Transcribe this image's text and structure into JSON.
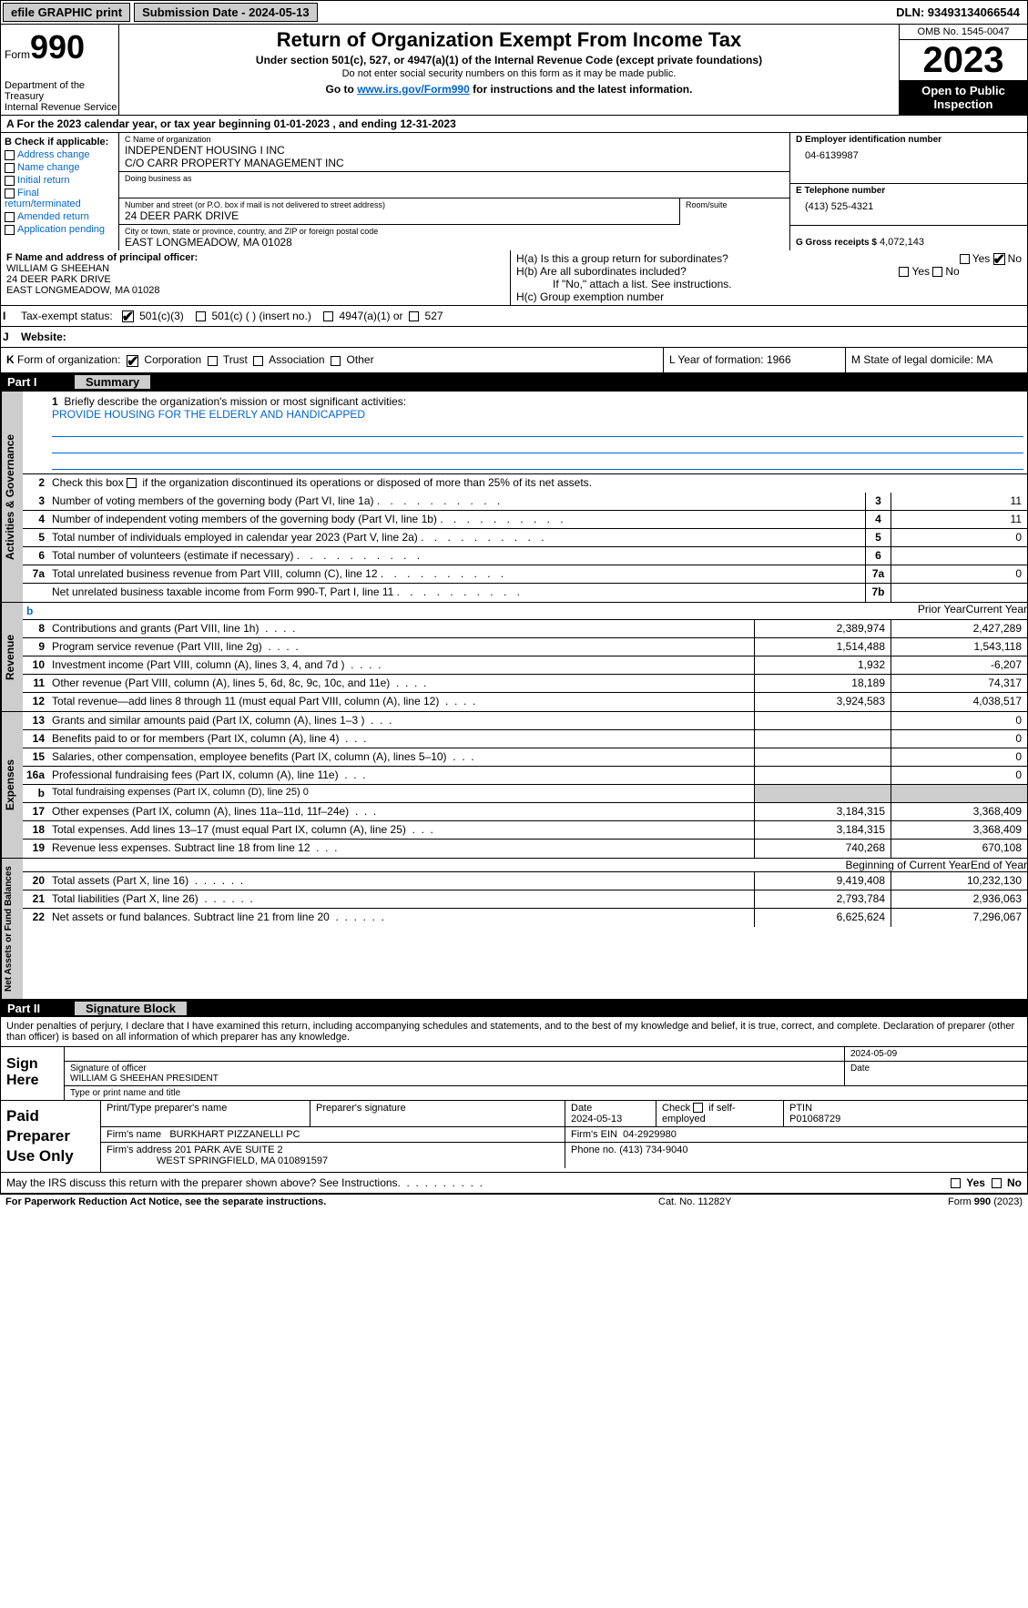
{
  "topbar": {
    "efile": "efile GRAPHIC print",
    "submission": "Submission Date - 2024-05-13",
    "dln": "DLN: 93493134066544"
  },
  "header": {
    "form_prefix": "Form",
    "form_num": "990",
    "title": "Return of Organization Exempt From Income Tax",
    "subtitle": "Under section 501(c), 527, or 4947(a)(1) of the Internal Revenue Code (except private foundations)",
    "ssn_note": "Do not enter social security numbers on this form as it may be made public.",
    "goto_prefix": "Go to ",
    "goto_link": "www.irs.gov/Form990",
    "goto_suffix": " for instructions and the latest information.",
    "dept": "Department of the Treasury\nInternal Revenue Service",
    "omb": "OMB No. 1545-0047",
    "year": "2023",
    "open": "Open to Public Inspection"
  },
  "line_a": "A For the 2023 calendar year, or tax year beginning 01-01-2023   , and ending 12-31-2023",
  "col_b": {
    "label": "B Check if applicable:",
    "opts": [
      "Address change",
      "Name change",
      "Initial return",
      "Final return/terminated",
      "Amended return",
      "Application pending"
    ]
  },
  "col_c": {
    "name_label": "C Name of organization",
    "name1": "INDEPENDENT HOUSING I INC",
    "name2": "C/O CARR PROPERTY MANAGEMENT INC",
    "dba_label": "Doing business as",
    "addr_label": "Number and street (or P.O. box if mail is not delivered to street address)",
    "addr": "24 DEER PARK DRIVE",
    "room_label": "Room/suite",
    "city_label": "City or town, state or province, country, and ZIP or foreign postal code",
    "city": "EAST LONGMEADOW, MA  01028"
  },
  "col_d": {
    "ein_label": "D Employer identification number",
    "ein": "04-6139987",
    "phone_label": "E Telephone number",
    "phone": "(413) 525-4321",
    "gross_label": "G Gross receipts $",
    "gross": "4,072,143"
  },
  "row_f": {
    "label": "F  Name and address of principal officer:",
    "name": "WILLIAM G SHEEHAN",
    "addr1": "24 DEER PARK DRIVE",
    "addr2": "EAST LONGMEADOW, MA  01028",
    "ha": "H(a)  Is this a group return for subordinates?",
    "hb": "H(b)  Are all subordinates included?",
    "hb_note": "If \"No,\" attach a list. See instructions.",
    "hc": "H(c)  Group exemption number"
  },
  "row_i": {
    "label": "I",
    "text": "Tax-exempt status:",
    "opt1": "501(c)(3)",
    "opt2": "501(c) (  ) (insert no.)",
    "opt3": "4947(a)(1) or",
    "opt4": "527"
  },
  "row_j": {
    "label": "J",
    "text": "Website:"
  },
  "row_k": {
    "label": "K",
    "text": "Form of organization:",
    "opts": [
      "Corporation",
      "Trust",
      "Association",
      "Other"
    ],
    "l": "L Year of formation: 1966",
    "m": "M State of legal domicile: MA"
  },
  "parts": {
    "p1": "Part I",
    "p1_title": "Summary",
    "p2": "Part II",
    "p2_title": "Signature Block"
  },
  "vtabs": {
    "gov": "Activities & Governance",
    "rev": "Revenue",
    "exp": "Expenses",
    "net": "Net Assets or Fund Balances"
  },
  "mission": {
    "num": "1",
    "label": "Briefly describe the organization's mission or most significant activities:",
    "text": "PROVIDE HOUSING FOR THE ELDERLY AND HANDICAPPED"
  },
  "gov_rows": [
    {
      "n": "2",
      "d": "Check this box      if the organization discontinued its operations or disposed of more than 25% of its net assets."
    },
    {
      "n": "3",
      "d": "Number of voting members of the governing body (Part VI, line 1a)",
      "box": "3",
      "v": "11"
    },
    {
      "n": "4",
      "d": "Number of independent voting members of the governing body (Part VI, line 1b)",
      "box": "4",
      "v": "11"
    },
    {
      "n": "5",
      "d": "Total number of individuals employed in calendar year 2023 (Part V, line 2a)",
      "box": "5",
      "v": "0"
    },
    {
      "n": "6",
      "d": "Total number of volunteers (estimate if necessary)",
      "box": "6",
      "v": ""
    },
    {
      "n": "7a",
      "d": "Total unrelated business revenue from Part VIII, column (C), line 12",
      "box": "7a",
      "v": "0"
    },
    {
      "n": "",
      "d": "Net unrelated business taxable income from Form 990-T, Part I, line 11",
      "box": "7b",
      "v": ""
    }
  ],
  "col_headers": {
    "b": "b",
    "prior": "Prior Year",
    "current": "Current Year"
  },
  "rev_rows": [
    {
      "n": "8",
      "d": "Contributions and grants (Part VIII, line 1h)",
      "p": "2,389,974",
      "c": "2,427,289"
    },
    {
      "n": "9",
      "d": "Program service revenue (Part VIII, line 2g)",
      "p": "1,514,488",
      "c": "1,543,118"
    },
    {
      "n": "10",
      "d": "Investment income (Part VIII, column (A), lines 3, 4, and 7d )",
      "p": "1,932",
      "c": "-6,207"
    },
    {
      "n": "11",
      "d": "Other revenue (Part VIII, column (A), lines 5, 6d, 8c, 9c, 10c, and 11e)",
      "p": "18,189",
      "c": "74,317"
    },
    {
      "n": "12",
      "d": "Total revenue—add lines 8 through 11 (must equal Part VIII, column (A), line 12)",
      "p": "3,924,583",
      "c": "4,038,517"
    }
  ],
  "exp_rows": [
    {
      "n": "13",
      "d": "Grants and similar amounts paid (Part IX, column (A), lines 1–3 )",
      "p": "",
      "c": "0"
    },
    {
      "n": "14",
      "d": "Benefits paid to or for members (Part IX, column (A), line 4)",
      "p": "",
      "c": "0"
    },
    {
      "n": "15",
      "d": "Salaries, other compensation, employee benefits (Part IX, column (A), lines 5–10)",
      "p": "",
      "c": "0"
    },
    {
      "n": "16a",
      "d": "Professional fundraising fees (Part IX, column (A), line 11e)",
      "p": "",
      "c": "0"
    },
    {
      "n": "b",
      "d": "Total fundraising expenses (Part IX, column (D), line 25) 0",
      "grey": true
    },
    {
      "n": "17",
      "d": "Other expenses (Part IX, column (A), lines 11a–11d, 11f–24e)",
      "p": "3,184,315",
      "c": "3,368,409"
    },
    {
      "n": "18",
      "d": "Total expenses. Add lines 13–17 (must equal Part IX, column (A), line 25)",
      "p": "3,184,315",
      "c": "3,368,409"
    },
    {
      "n": "19",
      "d": "Revenue less expenses. Subtract line 18 from line 12",
      "p": "740,268",
      "c": "670,108"
    }
  ],
  "net_headers": {
    "begin": "Beginning of Current Year",
    "end": "End of Year"
  },
  "net_rows": [
    {
      "n": "20",
      "d": "Total assets (Part X, line 16)",
      "p": "9,419,408",
      "c": "10,232,130"
    },
    {
      "n": "21",
      "d": "Total liabilities (Part X, line 26)",
      "p": "2,793,784",
      "c": "2,936,063"
    },
    {
      "n": "22",
      "d": "Net assets or fund balances. Subtract line 21 from line 20",
      "p": "6,625,624",
      "c": "7,296,067"
    }
  ],
  "penalty": "Under penalties of perjury, I declare that I have examined this return, including accompanying schedules and statements, and to the best of my knowledge and belief, it is true, correct, and complete. Declaration of preparer (other than officer) is based on all information of which preparer has any knowledge.",
  "sign": {
    "left": "Sign Here",
    "date": "2024-05-09",
    "sig_label": "Signature of officer",
    "officer": "WILLIAM G SHEEHAN  PRESIDENT",
    "type_label": "Type or print name and title",
    "date_label": "Date"
  },
  "paid": {
    "left": "Paid Preparer Use Only",
    "h1": "Print/Type preparer's name",
    "h2": "Preparer's signature",
    "h3": "Date",
    "date": "2024-05-13",
    "h4": "Check         if self-employed",
    "h5": "PTIN",
    "ptin": "P01068729",
    "firm_label": "Firm's name",
    "firm": "BURKHART PIZZANELLI PC",
    "ein_label": "Firm's EIN",
    "ein": "04-2929980",
    "addr_label": "Firm's address",
    "addr1": "201 PARK AVE SUITE 2",
    "addr2": "WEST SPRINGFIELD, MA  010891597",
    "phone_label": "Phone no.",
    "phone": "(413) 734-9040"
  },
  "discuss": "May the IRS discuss this return with the preparer shown above? See Instructions.",
  "footer": {
    "l": "For Paperwork Reduction Act Notice, see the separate instructions.",
    "m": "Cat. No. 11282Y",
    "r_prefix": "Form ",
    "r_form": "990",
    "r_suffix": " (2023)"
  },
  "yn": {
    "yes": "Yes",
    "no": "No"
  }
}
